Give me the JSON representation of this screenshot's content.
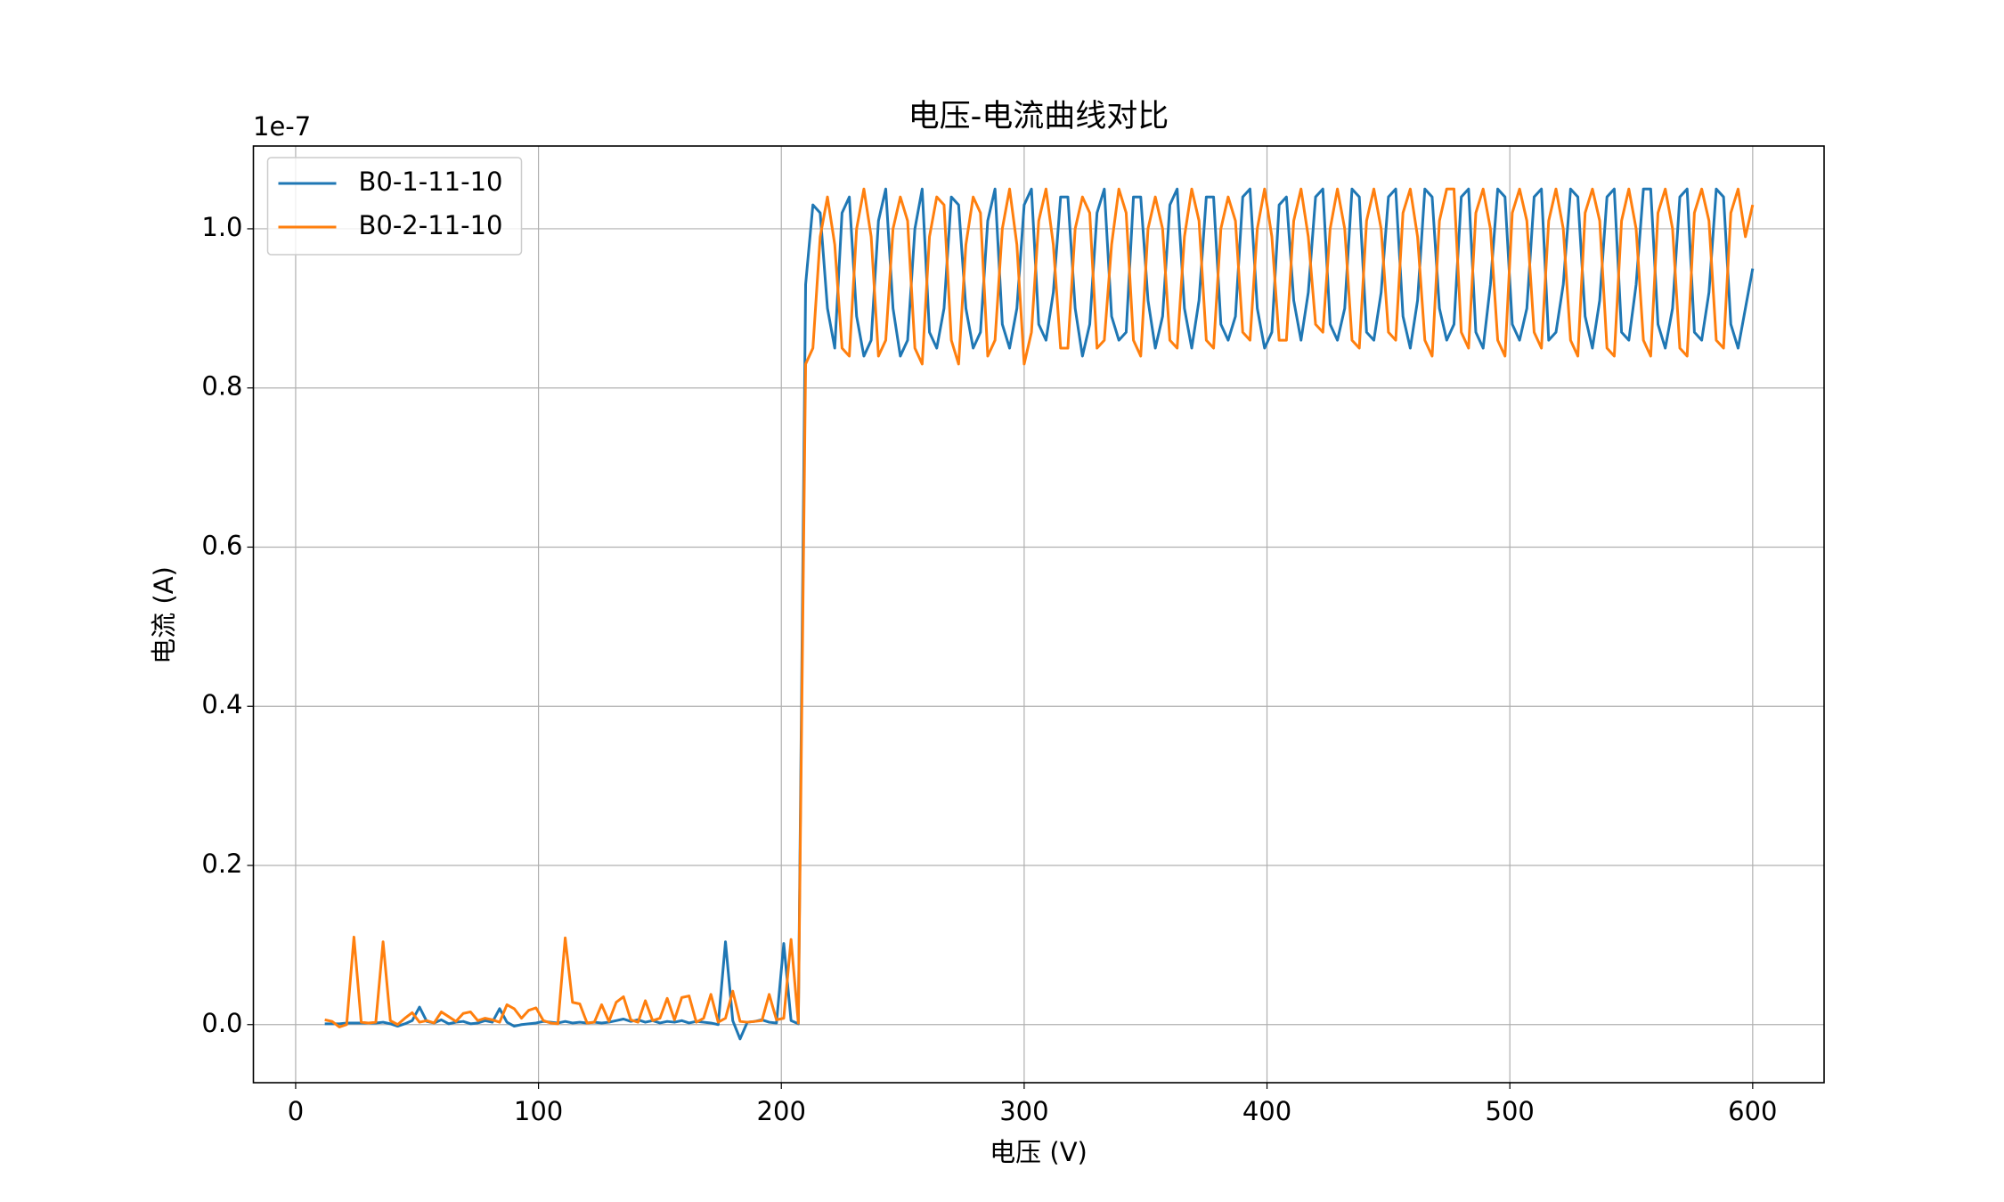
{
  "chart_data": {
    "type": "line",
    "title": "电压-电流曲线对比",
    "xlabel": "电压 (V)",
    "ylabel": "电流 (A)",
    "y_offset_label": "1e-7",
    "x": [
      12,
      15,
      18,
      21,
      24,
      27,
      30,
      33,
      36,
      39,
      42,
      45,
      48,
      51,
      54,
      57,
      60,
      63,
      66,
      69,
      72,
      75,
      78,
      81,
      84,
      87,
      90,
      93,
      96,
      99,
      102,
      105,
      108,
      111,
      114,
      117,
      120,
      123,
      126,
      129,
      132,
      135,
      138,
      141,
      144,
      147,
      150,
      153,
      156,
      159,
      162,
      165,
      168,
      171,
      174,
      177,
      180,
      183,
      186,
      189,
      192,
      195,
      198,
      201,
      204,
      207,
      210,
      213,
      216,
      219,
      222,
      225,
      228,
      231,
      234,
      237,
      240,
      243,
      246,
      249,
      252,
      255,
      258,
      261,
      264,
      267,
      270,
      273,
      276,
      279,
      282,
      285,
      288,
      291,
      294,
      297,
      300,
      303,
      306,
      309,
      312,
      315,
      318,
      321,
      324,
      327,
      330,
      333,
      336,
      339,
      342,
      345,
      348,
      351,
      354,
      357,
      360,
      363,
      366,
      369,
      372,
      375,
      378,
      381,
      384,
      387,
      390,
      393,
      396,
      399,
      402,
      405,
      408,
      411,
      414,
      417,
      420,
      423,
      426,
      429,
      432,
      435,
      438,
      441,
      444,
      447,
      450,
      453,
      456,
      459,
      462,
      465,
      468,
      471,
      474,
      477,
      480,
      483,
      486,
      489,
      492,
      495,
      498,
      501,
      504,
      507,
      510,
      513,
      516,
      519,
      522,
      525,
      528,
      531,
      534,
      537,
      540,
      543,
      546,
      549,
      552,
      555,
      558,
      561,
      564,
      567,
      570,
      573,
      576,
      579,
      582,
      585,
      588,
      591,
      594,
      597,
      600
    ],
    "series": [
      {
        "name": "B0-1-11-10",
        "color": "#1f77b4",
        "values": [
          0.001,
          0.001,
          0.001,
          0.002,
          0.002,
          0.002,
          0.002,
          0.002,
          0.003,
          0.001,
          -0.002,
          0.001,
          0.005,
          0.022,
          0.004,
          0.002,
          0.006,
          0.001,
          0.003,
          0.004,
          0.001,
          0.002,
          0.005,
          0.003,
          0.02,
          0.003,
          -0.002,
          0.0,
          0.001,
          0.002,
          0.004,
          0.003,
          0.002,
          0.004,
          0.002,
          0.003,
          0.002,
          0.003,
          0.002,
          0.003,
          0.005,
          0.007,
          0.004,
          0.006,
          0.003,
          0.005,
          0.002,
          0.004,
          0.003,
          0.005,
          0.002,
          0.004,
          0.003,
          0.002,
          0.0,
          0.104,
          0.005,
          -0.018,
          0.003,
          0.004,
          0.006,
          0.003,
          0.002,
          0.102,
          0.005,
          0.001,
          0.93,
          1.03,
          1.02,
          0.9,
          0.85,
          1.02,
          1.04,
          0.89,
          0.84,
          0.86,
          1.01,
          1.05,
          0.9,
          0.84,
          0.86,
          1.0,
          1.05,
          0.87,
          0.85,
          0.9,
          1.04,
          1.03,
          0.9,
          0.85,
          0.87,
          1.01,
          1.05,
          0.88,
          0.85,
          0.9,
          1.03,
          1.05,
          0.88,
          0.86,
          0.92,
          1.04,
          1.04,
          0.9,
          0.84,
          0.88,
          1.02,
          1.05,
          0.89,
          0.86,
          0.87,
          1.04,
          1.04,
          0.91,
          0.85,
          0.89,
          1.03,
          1.05,
          0.9,
          0.85,
          0.91,
          1.04,
          1.04,
          0.88,
          0.86,
          0.89,
          1.04,
          1.05,
          0.9,
          0.85,
          0.87,
          1.03,
          1.04,
          0.91,
          0.86,
          0.92,
          1.04,
          1.05,
          0.88,
          0.86,
          0.9,
          1.05,
          1.04,
          0.87,
          0.86,
          0.92,
          1.04,
          1.05,
          0.89,
          0.85,
          0.91,
          1.05,
          1.04,
          0.9,
          0.86,
          0.88,
          1.04,
          1.05,
          0.87,
          0.85,
          0.93,
          1.05,
          1.04,
          0.88,
          0.86,
          0.9,
          1.04,
          1.05,
          0.86,
          0.87,
          0.93,
          1.05,
          1.04,
          0.89,
          0.85,
          0.91,
          1.04,
          1.05,
          0.87,
          0.86,
          0.93,
          1.05,
          1.05,
          0.88,
          0.85,
          0.9,
          1.04,
          1.05,
          0.87,
          0.86,
          0.92,
          1.05,
          1.04,
          0.88,
          0.85,
          0.9,
          0.95
        ]
      },
      {
        "name": "B0-2-11-10",
        "color": "#ff7f0e",
        "values": [
          0.006,
          0.004,
          -0.003,
          0.0,
          0.11,
          0.003,
          0.002,
          0.003,
          0.104,
          0.005,
          0.0,
          0.008,
          0.015,
          0.003,
          0.005,
          0.002,
          0.016,
          0.01,
          0.004,
          0.014,
          0.016,
          0.005,
          0.008,
          0.006,
          0.003,
          0.025,
          0.02,
          0.008,
          0.018,
          0.021,
          0.005,
          0.002,
          0.001,
          0.109,
          0.028,
          0.026,
          0.002,
          0.003,
          0.025,
          0.004,
          0.028,
          0.035,
          0.006,
          0.003,
          0.03,
          0.005,
          0.008,
          0.033,
          0.006,
          0.034,
          0.036,
          0.003,
          0.008,
          0.038,
          0.003,
          0.008,
          0.042,
          0.004,
          0.003,
          0.004,
          0.005,
          0.038,
          0.006,
          0.008,
          0.107,
          0.002,
          0.83,
          0.85,
          0.99,
          1.04,
          0.98,
          0.85,
          0.84,
          1.0,
          1.05,
          0.99,
          0.84,
          0.86,
          1.0,
          1.04,
          1.01,
          0.85,
          0.83,
          0.99,
          1.04,
          1.03,
          0.86,
          0.83,
          0.98,
          1.04,
          1.02,
          0.84,
          0.86,
          1.0,
          1.05,
          0.98,
          0.83,
          0.87,
          1.01,
          1.05,
          0.98,
          0.85,
          0.85,
          1.0,
          1.04,
          1.02,
          0.85,
          0.86,
          0.98,
          1.05,
          1.02,
          0.86,
          0.84,
          1.0,
          1.04,
          1.0,
          0.86,
          0.85,
          0.99,
          1.05,
          1.01,
          0.86,
          0.85,
          1.0,
          1.04,
          1.01,
          0.87,
          0.86,
          1.0,
          1.05,
          0.99,
          0.86,
          0.86,
          1.01,
          1.05,
          0.99,
          0.88,
          0.87,
          1.0,
          1.05,
          1.0,
          0.86,
          0.85,
          1.01,
          1.05,
          1.0,
          0.87,
          0.86,
          1.02,
          1.05,
          0.99,
          0.86,
          0.84,
          1.01,
          1.05,
          1.05,
          0.87,
          0.85,
          1.02,
          1.05,
          1.0,
          0.86,
          0.84,
          1.02,
          1.05,
          1.01,
          0.87,
          0.85,
          1.01,
          1.05,
          1.0,
          0.86,
          0.84,
          1.02,
          1.05,
          1.01,
          0.85,
          0.84,
          1.01,
          1.05,
          1.0,
          0.86,
          0.84,
          1.02,
          1.05,
          1.0,
          0.85,
          0.84,
          1.02,
          1.05,
          1.01,
          0.86,
          0.85,
          1.02,
          1.05,
          0.99,
          1.03
        ]
      }
    ],
    "xlim": [
      -17.4,
      629.4
    ],
    "xticks": [
      0,
      100,
      200,
      300,
      400,
      500,
      600
    ],
    "ylim": [
      -0.073,
      1.104
    ],
    "yticks": [
      {
        "value": 0,
        "label": "0.0"
      },
      {
        "value": 0.2,
        "label": "0.2"
      },
      {
        "value": 0.4,
        "label": "0.4"
      },
      {
        "value": 0.6,
        "label": "0.6"
      },
      {
        "value": 0.8,
        "label": "0.8"
      },
      {
        "value": 1.0,
        "label": "1.0"
      }
    ],
    "grid": true,
    "legend": "upper left"
  }
}
